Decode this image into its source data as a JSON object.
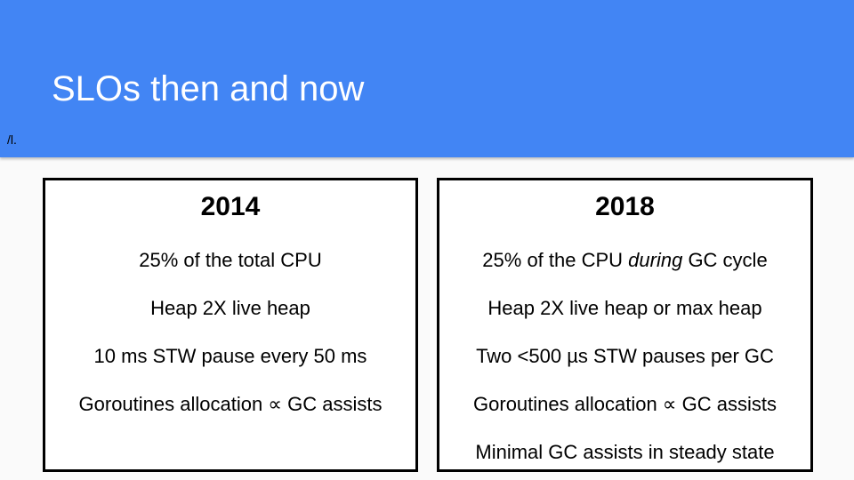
{
  "slide": {
    "title": "SLOs then and now",
    "note": "/l.",
    "header_color": "#4285f4"
  },
  "columns": [
    {
      "year": "2014",
      "items": [
        {
          "text": "25% of the total CPU"
        },
        {
          "text": "Heap 2X live heap"
        },
        {
          "text": "10 ms STW pause every 50 ms"
        },
        {
          "text": "Goroutines allocation ∝ GC assists"
        }
      ]
    },
    {
      "year": "2018",
      "items": [
        {
          "pre": "25% of the CPU ",
          "em": "during",
          "post": " GC cycle"
        },
        {
          "text": "Heap 2X live heap or max heap"
        },
        {
          "text": "Two <500 µs STW pauses per GC"
        },
        {
          "text": "Goroutines allocation ∝ GC assists"
        },
        {
          "text": "Minimal GC assists in steady state"
        }
      ]
    }
  ]
}
